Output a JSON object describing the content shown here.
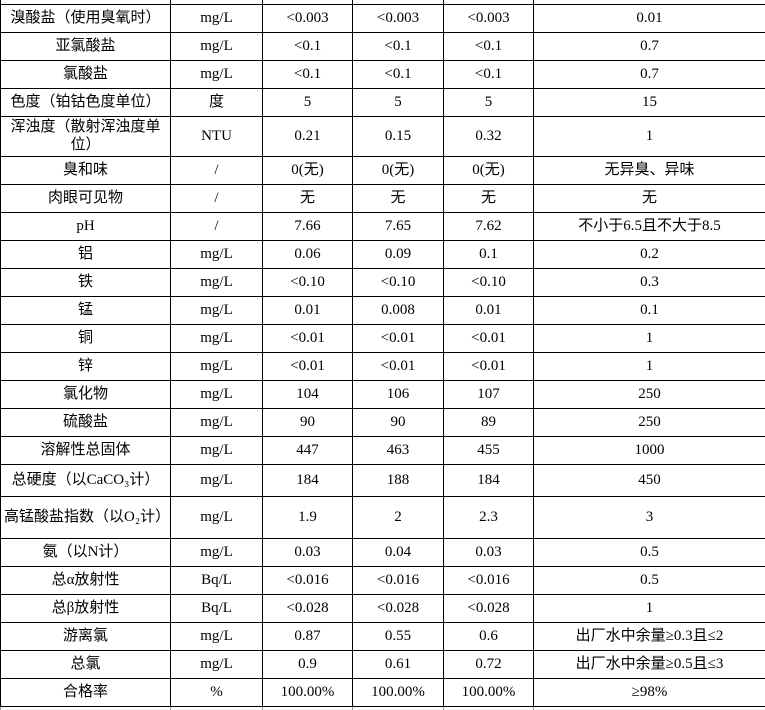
{
  "table": {
    "rows": [
      {
        "parameter": "溴酸盐（使用臭氧时）",
        "unit": "mg/L",
        "sample1": "<0.003",
        "sample2": "<0.003",
        "sample3": "<0.003",
        "limit": "0.01"
      },
      {
        "parameter": "亚氯酸盐",
        "unit": "mg/L",
        "sample1": "<0.1",
        "sample2": "<0.1",
        "sample3": "<0.1",
        "limit": "0.7"
      },
      {
        "parameter": "氯酸盐",
        "unit": "mg/L",
        "sample1": "<0.1",
        "sample2": "<0.1",
        "sample3": "<0.1",
        "limit": "0.7"
      },
      {
        "parameter": "色度（铂钴色度单位）",
        "unit": "度",
        "sample1": "5",
        "sample2": "5",
        "sample3": "5",
        "limit": "15"
      },
      {
        "parameter": "浑浊度（散射浑浊度单位）",
        "unit": "NTU",
        "sample1": "0.21",
        "sample2": "0.15",
        "sample3": "0.32",
        "limit": "1"
      },
      {
        "parameter": "臭和味",
        "unit": "/",
        "sample1": "0(无)",
        "sample2": "0(无)",
        "sample3": "0(无)",
        "limit": "无异臭、异味"
      },
      {
        "parameter": "肉眼可见物",
        "unit": "/",
        "sample1": "无",
        "sample2": "无",
        "sample3": "无",
        "limit": "无"
      },
      {
        "parameter": "pH",
        "unit": "/",
        "sample1": "7.66",
        "sample2": "7.65",
        "sample3": "7.62",
        "limit": "不小于6.5且不大于8.5"
      },
      {
        "parameter": "铝",
        "unit": "mg/L",
        "sample1": "0.06",
        "sample2": "0.09",
        "sample3": "0.1",
        "limit": "0.2"
      },
      {
        "parameter": "铁",
        "unit": "mg/L",
        "sample1": "<0.10",
        "sample2": "<0.10",
        "sample3": "<0.10",
        "limit": "0.3"
      },
      {
        "parameter": "锰",
        "unit": "mg/L",
        "sample1": "0.01",
        "sample2": "0.008",
        "sample3": "0.01",
        "limit": "0.1"
      },
      {
        "parameter": "铜",
        "unit": "mg/L",
        "sample1": "<0.01",
        "sample2": "<0.01",
        "sample3": "<0.01",
        "limit": "1"
      },
      {
        "parameter": "锌",
        "unit": "mg/L",
        "sample1": "<0.01",
        "sample2": "<0.01",
        "sample3": "<0.01",
        "limit": "1"
      },
      {
        "parameter": "氯化物",
        "unit": "mg/L",
        "sample1": "104",
        "sample2": "106",
        "sample3": "107",
        "limit": "250"
      },
      {
        "parameter": "硫酸盐",
        "unit": "mg/L",
        "sample1": "90",
        "sample2": "90",
        "sample3": "89",
        "limit": "250"
      },
      {
        "parameter": "溶解性总固体",
        "unit": "mg/L",
        "sample1": "447",
        "sample2": "463",
        "sample3": "455",
        "limit": "1000"
      },
      {
        "parameter": "总硬度（以CaCO₃计）",
        "unit": "mg/L",
        "sample1": "184",
        "sample2": "188",
        "sample3": "184",
        "limit": "450"
      },
      {
        "parameter": "高锰酸盐指数（以O₂计）",
        "unit": "mg/L",
        "sample1": "1.9",
        "sample2": "2",
        "sample3": "2.3",
        "limit": "3"
      },
      {
        "parameter": "氨（以N计）",
        "unit": "mg/L",
        "sample1": "0.03",
        "sample2": "0.04",
        "sample3": "0.03",
        "limit": "0.5"
      },
      {
        "parameter": "总α放射性",
        "unit": "Bq/L",
        "sample1": "<0.016",
        "sample2": "<0.016",
        "sample3": "<0.016",
        "limit": "0.5"
      },
      {
        "parameter": "总β放射性",
        "unit": "Bq/L",
        "sample1": "<0.028",
        "sample2": "<0.028",
        "sample3": "<0.028",
        "limit": "1"
      },
      {
        "parameter": "游离氯",
        "unit": "mg/L",
        "sample1": "0.87",
        "sample2": "0.55",
        "sample3": "0.6",
        "limit": "出厂水中余量≥0.3且≤2"
      },
      {
        "parameter": "总氯",
        "unit": "mg/L",
        "sample1": "0.9",
        "sample2": "0.61",
        "sample3": "0.72",
        "limit": "出厂水中余量≥0.5且≤3"
      },
      {
        "parameter": "合格率",
        "unit": "%",
        "sample1": "100.00%",
        "sample2": "100.00%",
        "sample3": "100.00%",
        "limit": "≥98%"
      }
    ]
  }
}
